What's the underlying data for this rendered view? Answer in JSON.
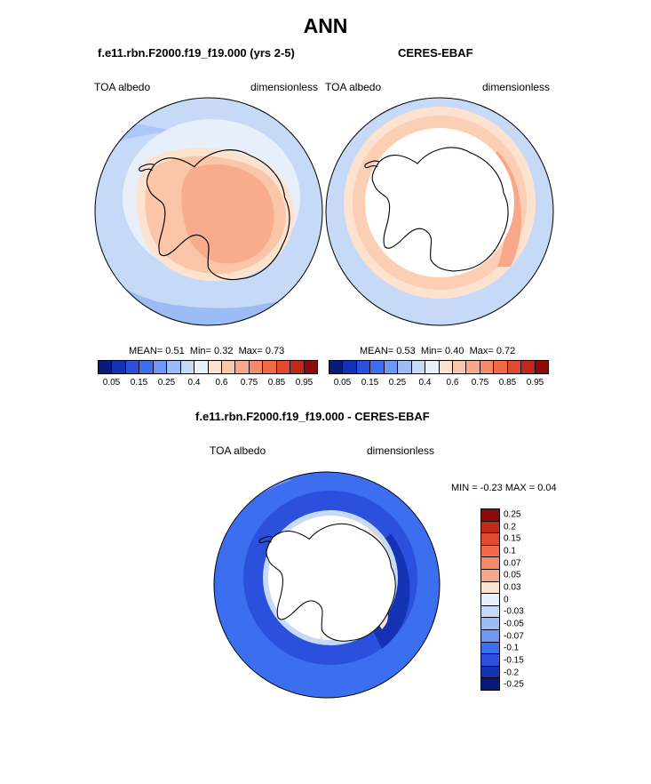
{
  "title": "ANN",
  "panels": [
    {
      "title": "f.e11.rbn.F2000.f19_f19.000 (yrs 2-5)",
      "left_label": "TOA albedo",
      "right_label": "dimensionless",
      "stats": {
        "mean_label": "MEAN=",
        "mean": "0.51",
        "min_label": "Min=",
        "min": "0.32",
        "max_label": "Max=",
        "max": "0.73"
      }
    },
    {
      "title": "CERES-EBAF",
      "left_label": "TOA albedo",
      "right_label": "dimensionless",
      "stats": {
        "mean_label": "MEAN=",
        "mean": "0.53",
        "min_label": "Min=",
        "min": "0.40",
        "max_label": "Max=",
        "max": "0.72"
      }
    }
  ],
  "diff_panel": {
    "title": "f.e11.rbn.F2000.f19_f19.000 - CERES-EBAF",
    "left_label": "TOA albedo",
    "right_label": "dimensionless",
    "stats": {
      "min_label": "MIN =",
      "min": "-0.23",
      "max_label": "MAX =",
      "max": "0.04"
    }
  },
  "colorbar_main": {
    "colors": [
      "#0a1a78",
      "#1432b4",
      "#2a50dc",
      "#3c6ef0",
      "#6d98f5",
      "#9cbcf6",
      "#c6daf8",
      "#e6effa",
      "#fde2cf",
      "#fbc6a8",
      "#f8a888",
      "#f58a6a",
      "#f06a4a",
      "#e04a30",
      "#c02818",
      "#8c0a08"
    ],
    "ticks": [
      "0.05",
      "0.15",
      "0.25",
      "0.4",
      "0.6",
      "0.75",
      "0.85",
      "0.95"
    ]
  },
  "colorbar_diff": {
    "colors": [
      "#8c0a08",
      "#c02818",
      "#e04a30",
      "#f06a4a",
      "#f58a6a",
      "#f8a888",
      "#fde2cf",
      "#e6effa",
      "#c6daf8",
      "#9cbcf6",
      "#6d98f5",
      "#3c6ef0",
      "#2a50dc",
      "#1432b4",
      "#0a1a78"
    ],
    "ticks": [
      "0.25",
      "0.2",
      "0.15",
      "0.1",
      "0.07",
      "0.05",
      "0.03",
      "0",
      "-0.03",
      "-0.05",
      "-0.07",
      "-0.1",
      "-0.15",
      "-0.2",
      "-0.25"
    ]
  }
}
